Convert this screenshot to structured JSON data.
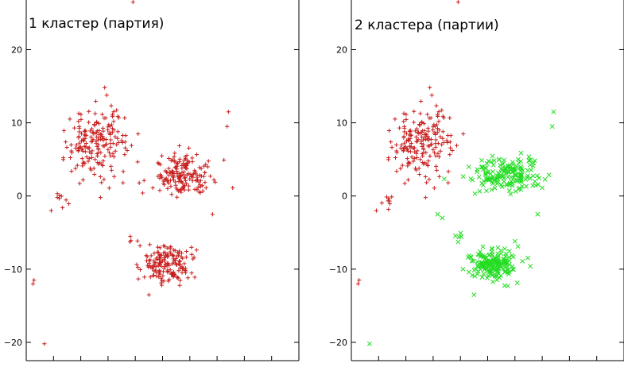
{
  "chart_data": [
    {
      "type": "scatter",
      "title": "1 кластер (партия)",
      "xlabel": "",
      "ylabel": "",
      "ylim": [
        -22.5,
        27
      ],
      "xlim": [
        -30,
        30
      ],
      "yticks": [
        20,
        10,
        0,
        -10,
        -20
      ],
      "yticklabels": [
        "20",
        "10",
        "0",
        "−10",
        "−20"
      ],
      "grid": false,
      "legend": "none",
      "series": [
        {
          "marker": "plus",
          "color": "#c81e1e",
          "clusters": [
            {
              "center": [
                -14,
                7.5
              ],
              "spread": [
                6.5,
                4.2
              ],
              "count": 190
            },
            {
              "center": [
                4,
                2.8
              ],
              "spread": [
                6.5,
                2.3
              ],
              "count": 170
            },
            {
              "center": [
                1,
                -9.3
              ],
              "spread": [
                5.2,
                2.0
              ],
              "count": 170
            },
            {
              "center": [
                -22,
                -0.5
              ],
              "spread": [
                1.5,
                1.2
              ],
              "count": 8
            },
            {
              "center": [
                -6.5,
                -6
              ],
              "spread": [
                1.5,
                1.0
              ],
              "count": 4
            }
          ],
          "points": [
            [
              -28.5,
              -12
            ],
            [
              -28.3,
              -11.5
            ],
            [
              -26,
              -20.2
            ],
            [
              -24.5,
              -2
            ],
            [
              -6.5,
              26.5
            ],
            [
              14.5,
              11.5
            ],
            [
              14.2,
              9.5
            ],
            [
              -3,
              -13.5
            ],
            [
              11,
              -2.5
            ]
          ]
        }
      ]
    },
    {
      "type": "scatter",
      "title": "2 кластера (партии)",
      "xlabel": "",
      "ylabel": "",
      "ylim": [
        -22.5,
        27
      ],
      "xlim": [
        -30,
        30
      ],
      "yticks": [
        20,
        10,
        0,
        -10,
        -20
      ],
      "yticklabels": [
        "20",
        "10",
        "0",
        "−10",
        "−20"
      ],
      "grid": false,
      "legend": "none",
      "series": [
        {
          "marker": "plus",
          "color": "#c81e1e",
          "clusters": [
            {
              "center": [
                -14,
                7.5
              ],
              "spread": [
                6.5,
                4.2
              ],
              "count": 190
            },
            {
              "center": [
                -22,
                -0.5
              ],
              "spread": [
                1.5,
                1.2
              ],
              "count": 8
            }
          ],
          "points": [
            [
              -28.5,
              -12
            ],
            [
              -28.3,
              -11.5
            ],
            [
              -6.5,
              26.5
            ],
            [
              -24.5,
              -2
            ]
          ]
        },
        {
          "marker": "cross",
          "color": "#22dd22",
          "clusters": [
            {
              "center": [
                4,
                2.8
              ],
              "spread": [
                6.5,
                2.3
              ],
              "count": 170
            },
            {
              "center": [
                1,
                -9.3
              ],
              "spread": [
                5.2,
                2.0
              ],
              "count": 170
            },
            {
              "center": [
                -6.5,
                -6
              ],
              "spread": [
                1.5,
                1.0
              ],
              "count": 4
            }
          ],
          "points": [
            [
              -26,
              -20.2
            ],
            [
              14.5,
              11.5
            ],
            [
              14.2,
              9.5
            ],
            [
              -3,
              -13.5
            ],
            [
              11,
              -2.5
            ],
            [
              -10,
              -3
            ],
            [
              -11,
              -2.5
            ]
          ]
        }
      ]
    }
  ]
}
